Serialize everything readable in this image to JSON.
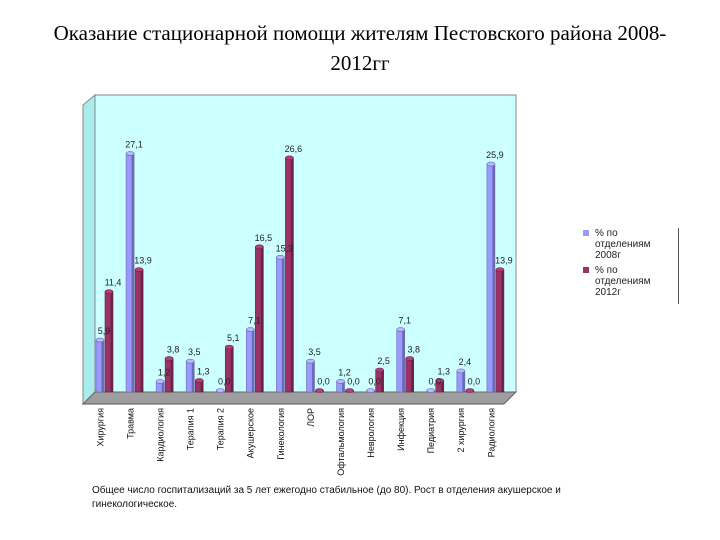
{
  "chart_data": {
    "type": "bar",
    "title": "Оказание стационарной помощи жителям Пестовского района 2008-2012гг",
    "categories": [
      "Хирургия",
      "Травма",
      "Кардиология",
      "Терапия 1",
      "Терапия 2",
      "Акушерское",
      "Гинекология",
      "ЛОР",
      "Офтальмология",
      "Неврология",
      "Инфекция",
      "Педиатрия",
      "2 хирургия",
      "Радиология"
    ],
    "series": [
      {
        "name": "% по отделениям 2008г",
        "color": "#9999ff",
        "values": [
          5.9,
          27.1,
          1.2,
          3.5,
          0.0,
          7.1,
          15.3,
          3.5,
          1.2,
          0.0,
          7.1,
          0.0,
          2.4,
          25.9
        ],
        "labels": [
          "5,9",
          "27,1",
          "1,2",
          "3,5",
          "0,0",
          "7,1",
          "15,3",
          "3,5",
          "1,2",
          "0,0",
          "7,1",
          "0,0",
          "2,4",
          "25,9"
        ]
      },
      {
        "name": "% по отделениям 2012г",
        "color": "#993366",
        "values": [
          11.4,
          13.9,
          3.8,
          1.3,
          5.1,
          16.5,
          26.6,
          0.0,
          0.0,
          2.5,
          3.8,
          1.3,
          0.0,
          13.9
        ],
        "labels": [
          "11,4",
          "13,9",
          "3,8",
          "1,3",
          "5,1",
          "16,5",
          "26,6",
          "0,0",
          "0,0",
          "2,5",
          "3,8",
          "1,3",
          "0,0",
          "13,9"
        ]
      }
    ],
    "ylim": [
      0,
      30
    ],
    "grid": false,
    "legend_position": "right",
    "wall_color": "#ccffff"
  },
  "footnote": "Общее число госпитализаций за 5 лет ежегодно стабильное (до 80). Рост в отделения акушерское и гинекологическое."
}
